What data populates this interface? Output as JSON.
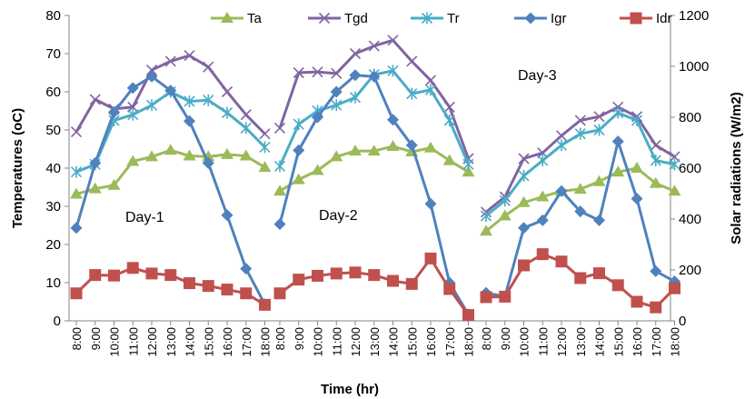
{
  "chart_data": {
    "type": "line",
    "xlabel": "Time (hr)",
    "ylabel": "Temperatures (oC)",
    "y2label": "Solar radiations (W/m2)",
    "ylim": [
      0,
      80
    ],
    "y2lim": [
      0,
      1200
    ],
    "yticks": [
      0,
      10,
      20,
      30,
      40,
      50,
      60,
      70,
      80
    ],
    "y2ticks": [
      0,
      200,
      400,
      600,
      800,
      1000,
      1200
    ],
    "grid": false,
    "legend_position": "top",
    "times": [
      "8:00",
      "9:00",
      "10:00",
      "11:00",
      "12:00",
      "13:00",
      "14:00",
      "15:00",
      "16:00",
      "17:00",
      "18:00"
    ],
    "groups": [
      {
        "label": "Day-1"
      },
      {
        "label": "Day-2"
      },
      {
        "label": "Day-3"
      }
    ],
    "series": [
      {
        "name": "Ta",
        "axis": "left",
        "color": "#9BBB59",
        "marker": "triangle",
        "values": [
          [
            33.2,
            34.6,
            35.5,
            41.8,
            43.0,
            44.7,
            43.2,
            43.0,
            43.6,
            43.2,
            40.2
          ],
          [
            34.0,
            37.0,
            39.4,
            43.0,
            44.5,
            44.5,
            45.7,
            44.3,
            45.3,
            42.0,
            39.0
          ],
          [
            23.5,
            27.5,
            31.0,
            32.5,
            34.0,
            34.5,
            36.5,
            39.0,
            40.0,
            36.0,
            34.0
          ]
        ]
      },
      {
        "name": "Tgd",
        "axis": "left",
        "color": "#8064A2",
        "marker": "x",
        "values": [
          [
            49.5,
            58.0,
            55.5,
            56.0,
            65.7,
            68.0,
            69.5,
            66.5,
            60.0,
            54.0,
            49.0
          ],
          [
            50.5,
            65.0,
            65.2,
            64.8,
            70.0,
            72.0,
            73.5,
            68.0,
            63.0,
            56.0,
            42.5
          ],
          [
            28.5,
            32.5,
            42.5,
            44.0,
            48.5,
            52.5,
            53.5,
            56.0,
            53.5,
            46.0,
            43.0
          ]
        ]
      },
      {
        "name": "Tr",
        "axis": "left",
        "color": "#4BACC6",
        "marker": "star",
        "values": [
          [
            39.0,
            41.0,
            52.5,
            54.0,
            56.5,
            60.0,
            57.5,
            57.8,
            54.5,
            50.5,
            45.5
          ],
          [
            40.5,
            51.5,
            55.0,
            56.5,
            58.5,
            64.5,
            65.5,
            59.5,
            60.5,
            52.5,
            41.0
          ],
          [
            27.5,
            31.5,
            38.0,
            42.0,
            46.0,
            49.0,
            50.0,
            54.5,
            52.5,
            42.0,
            41.0
          ]
        ]
      },
      {
        "name": "Igr",
        "axis": "right",
        "color": "#4F81BD",
        "marker": "diamond",
        "values": [
          [
            365,
            620,
            820,
            915,
            960,
            905,
            785,
            620,
            415,
            205,
            65
          ],
          [
            380,
            670,
            800,
            900,
            965,
            960,
            790,
            690,
            460,
            150,
            25
          ],
          [
            110,
            95,
            365,
            395,
            510,
            430,
            395,
            705,
            480,
            195,
            155
          ]
        ]
      },
      {
        "name": "Idr",
        "axis": "right",
        "color": "#C0504D",
        "marker": "square",
        "values": [
          [
            108,
            180,
            178,
            208,
            186,
            180,
            148,
            137,
            123,
            108,
            63
          ],
          [
            108,
            162,
            177,
            186,
            190,
            180,
            157,
            145,
            245,
            125,
            23
          ],
          [
            93,
            95,
            218,
            262,
            233,
            168,
            187,
            140,
            75,
            53,
            128
          ]
        ]
      }
    ]
  }
}
